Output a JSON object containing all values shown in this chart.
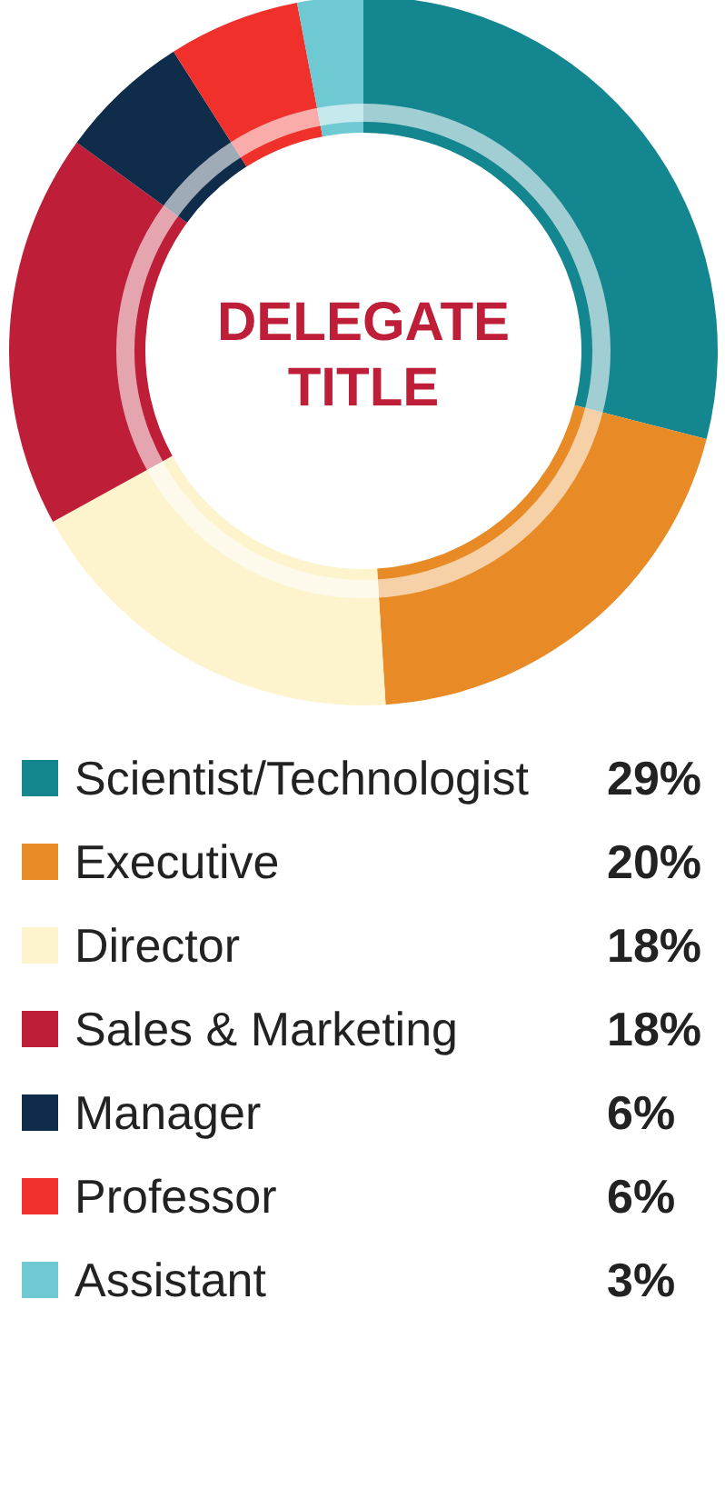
{
  "chart_data": {
    "type": "donut",
    "title": "DELEGATE TITLE",
    "categories": [
      "Scientist/Technologist",
      "Executive",
      "Director",
      "Sales & Marketing",
      "Manager",
      "Professor",
      "Assistant"
    ],
    "values": [
      29,
      20,
      18,
      18,
      6,
      6,
      3
    ],
    "colors": [
      "#13868f",
      "#e88a25",
      "#fdf3cc",
      "#be1e37",
      "#0f2d4a",
      "#f0302a",
      "#6ec9d3"
    ],
    "value_labels": [
      "29%",
      "20%",
      "18%",
      "18%",
      "6%",
      "6%",
      "3%"
    ],
    "legend": "bottom"
  }
}
